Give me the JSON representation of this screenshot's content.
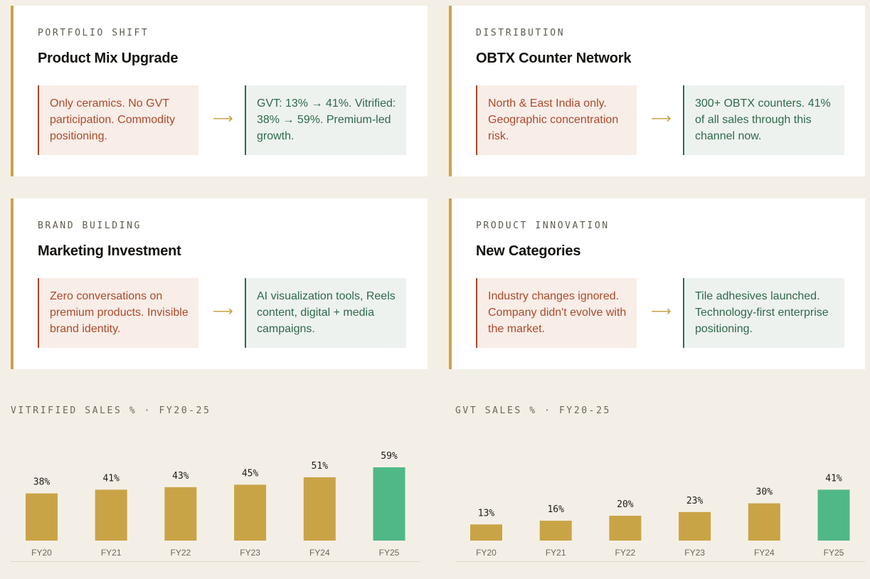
{
  "cards": [
    {
      "eyebrow": "PORTFOLIO SHIFT",
      "title": "Product Mix Upgrade",
      "before": "Only ceramics. No GVT participation. Commodity positioning.",
      "arrow": "⟶",
      "after": "GVT: 13% → 41%. Vitrified: 38% → 59%. Premium-led growth."
    },
    {
      "eyebrow": "DISTRIBUTION",
      "title": "OBTX Counter Network",
      "before": "North & East India only. Geographic concentration risk.",
      "arrow": "⟶",
      "after": "300+ OBTX counters. 41% of all sales through this channel now."
    },
    {
      "eyebrow": "BRAND BUILDING",
      "title": "Marketing Investment",
      "before": "Zero conversations on premium products. Invisible brand identity.",
      "arrow": "⟶",
      "after": "AI visualization tools, Reels content, digital + media campaigns."
    },
    {
      "eyebrow": "PRODUCT INNOVATION",
      "title": "New Categories",
      "before": "Industry changes ignored. Company didn't evolve with the market.",
      "arrow": "⟶",
      "after": "Tile adhesives launched. Technology-first enterprise positioning."
    }
  ],
  "colors": {
    "bar": "#c9a447",
    "highlight": "#50b887"
  },
  "chart_data": [
    {
      "type": "bar",
      "title": "VITRIFIED SALES % · FY20-25",
      "categories": [
        "FY20",
        "FY21",
        "FY22",
        "FY23",
        "FY24",
        "FY25"
      ],
      "values": [
        38,
        41,
        43,
        45,
        51,
        59
      ],
      "labels": [
        "38%",
        "41%",
        "43%",
        "45%",
        "51%",
        "59%"
      ],
      "highlight_index": 5,
      "ylim": [
        0,
        59
      ],
      "xlabel": "",
      "ylabel": ""
    },
    {
      "type": "bar",
      "title": "GVT SALES % · FY20-25",
      "categories": [
        "FY20",
        "FY21",
        "FY22",
        "FY23",
        "FY24",
        "FY25"
      ],
      "values": [
        13,
        16,
        20,
        23,
        30,
        41
      ],
      "labels": [
        "13%",
        "16%",
        "20%",
        "23%",
        "30%",
        "41%"
      ],
      "highlight_index": 5,
      "ylim": [
        0,
        59
      ],
      "xlabel": "",
      "ylabel": ""
    }
  ]
}
